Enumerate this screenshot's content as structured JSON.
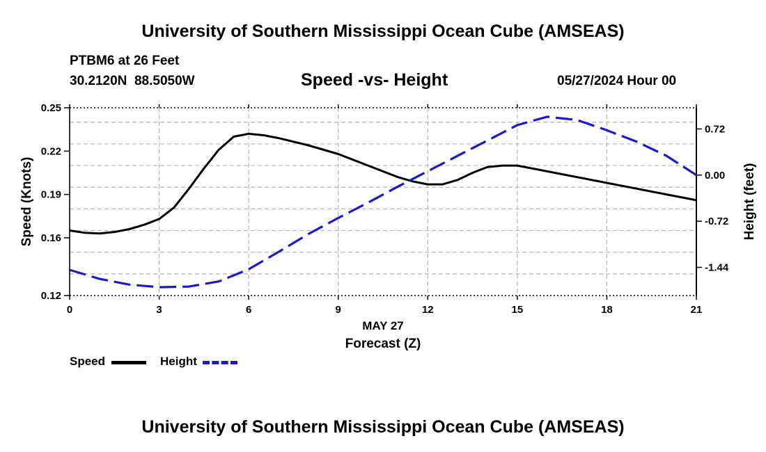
{
  "header": {
    "title_top": "University of Southern Mississippi Ocean Cube (AMSEAS)",
    "station": "PTBM6 at 26 Feet",
    "coords": "30.2120N  88.5050W",
    "subtitle": "Speed -vs- Height",
    "datetime": "05/27/2024 Hour 00",
    "title_bottom": "University of Southern Mississippi Ocean Cube (AMSEAS)"
  },
  "legend": {
    "speed_label": "Speed",
    "height_label": "Height"
  },
  "colors": {
    "speed": "#000000",
    "height": "#1a1acc",
    "grid": "#b4b4b4"
  },
  "chart_data": {
    "type": "line",
    "title": "Speed -vs- Height",
    "xlabel": "Forecast (Z)",
    "xlabel_date": "MAY 27",
    "ylabel": "Speed (Knots)",
    "y2label": "Height (feet)",
    "xlim": [
      0,
      21
    ],
    "ylim": [
      0.12,
      0.25
    ],
    "y2lim": [
      -1.88,
      1.05
    ],
    "x_ticks": [
      0,
      3,
      6,
      9,
      12,
      15,
      18,
      21
    ],
    "x_tick_labels": [
      "0",
      "3",
      "6",
      "9",
      "12",
      "15",
      "18",
      "21"
    ],
    "y_ticks": [
      0.12,
      0.16,
      0.19,
      0.22,
      0.25
    ],
    "y_tick_labels": [
      "0.12",
      "0.16",
      "0.19",
      "0.22",
      "0.25"
    ],
    "y_gridlines": [
      0.135,
      0.15,
      0.165,
      0.18,
      0.195,
      0.21,
      0.225,
      0.24
    ],
    "y2_ticks": [
      0.72,
      0.0,
      -0.72,
      -1.44
    ],
    "y2_tick_labels": [
      "0.72",
      "0.00",
      "-0.72",
      "-1.44"
    ],
    "grid": true,
    "series": [
      {
        "name": "Speed",
        "axis": "left",
        "style": "solid",
        "x": [
          0,
          0.5,
          1,
          1.5,
          2,
          2.5,
          3,
          3.5,
          4,
          4.5,
          5,
          5.5,
          6,
          6.5,
          7,
          8,
          9,
          10,
          11,
          11.5,
          12,
          12.5,
          13,
          13.5,
          14,
          14.5,
          15,
          16,
          17,
          18,
          19,
          20,
          21
        ],
        "values": [
          0.165,
          0.1635,
          0.163,
          0.164,
          0.166,
          0.169,
          0.173,
          0.181,
          0.194,
          0.208,
          0.221,
          0.23,
          0.232,
          0.231,
          0.229,
          0.224,
          0.218,
          0.21,
          0.202,
          0.199,
          0.197,
          0.197,
          0.2,
          0.205,
          0.209,
          0.21,
          0.21,
          0.206,
          0.202,
          0.198,
          0.194,
          0.19,
          0.186
        ]
      },
      {
        "name": "Height",
        "axis": "right",
        "style": "dashed",
        "x": [
          0,
          1,
          2,
          3,
          4,
          5,
          6,
          7,
          8,
          9,
          10,
          11,
          12,
          13,
          14,
          15,
          16,
          17,
          18,
          19,
          20,
          21
        ],
        "values": [
          -1.48,
          -1.62,
          -1.71,
          -1.75,
          -1.74,
          -1.66,
          -1.47,
          -1.2,
          -0.92,
          -0.67,
          -0.43,
          -0.18,
          0.06,
          0.3,
          0.54,
          0.78,
          0.91,
          0.86,
          0.7,
          0.52,
          0.3,
          0.0
        ]
      }
    ]
  }
}
